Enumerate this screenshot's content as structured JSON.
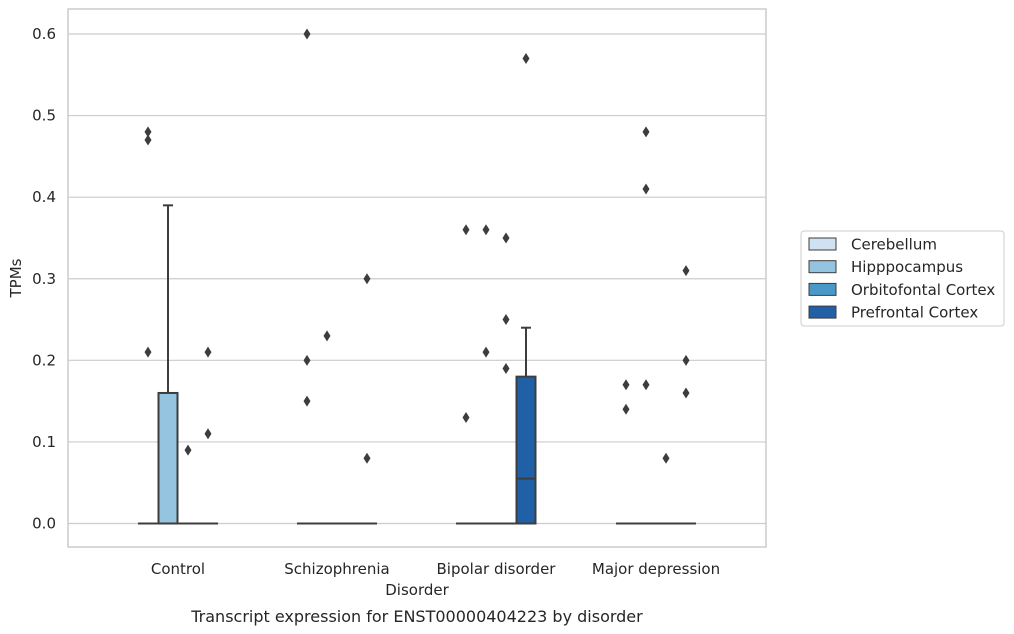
{
  "caption": "Transcript expression for ENST00000404223 by disorder",
  "chart_data": {
    "type": "box",
    "xlabel": "Disorder",
    "ylabel": "TPMs",
    "ylim": [
      -0.03,
      0.63
    ],
    "yticks": [
      0.0,
      0.1,
      0.2,
      0.3,
      0.4,
      0.5,
      0.6
    ],
    "ytick_labels": [
      "0.0",
      "0.1",
      "0.2",
      "0.3",
      "0.4",
      "0.5",
      "0.6"
    ],
    "grid": "horizontal",
    "legend_position": "right",
    "categories": [
      "Control",
      "Schizophrenia",
      "Bipolar disorder",
      "Major depression"
    ],
    "series": [
      {
        "name": "Cerebellum",
        "color": "#d0e1f2",
        "boxes": [
          {
            "min": 0,
            "q1": 0,
            "median": 0,
            "q3": 0,
            "max": 0,
            "outliers": [
              0.21,
              0.47,
              0.48
            ]
          },
          {
            "min": 0,
            "q1": 0,
            "median": 0,
            "q3": 0,
            "max": 0,
            "outliers": [
              0.15,
              0.2,
              0.6
            ]
          },
          {
            "min": 0,
            "q1": 0,
            "median": 0,
            "q3": 0,
            "max": 0,
            "outliers": [
              0.13,
              0.36
            ]
          },
          {
            "min": 0,
            "q1": 0,
            "median": 0,
            "q3": 0,
            "max": 0,
            "outliers": [
              0.14,
              0.17
            ]
          }
        ]
      },
      {
        "name": "Hipppocampus",
        "color": "#94c4df",
        "boxes": [
          {
            "min": 0,
            "q1": 0,
            "median": 0,
            "q3": 0.16,
            "max": 0.39,
            "outliers": []
          },
          {
            "min": 0,
            "q1": 0,
            "median": 0,
            "q3": 0,
            "max": 0,
            "outliers": [
              0.23
            ]
          },
          {
            "min": 0,
            "q1": 0,
            "median": 0,
            "q3": 0,
            "max": 0,
            "outliers": [
              0.21,
              0.36
            ]
          },
          {
            "min": 0,
            "q1": 0,
            "median": 0,
            "q3": 0,
            "max": 0,
            "outliers": [
              0.17,
              0.41,
              0.48
            ]
          }
        ]
      },
      {
        "name": "Orbitofontal Cortex",
        "color": "#4a98c9",
        "boxes": [
          {
            "min": 0,
            "q1": 0,
            "median": 0,
            "q3": 0,
            "max": 0,
            "outliers": [
              0.09
            ]
          },
          {
            "min": 0,
            "q1": 0,
            "median": 0,
            "q3": 0,
            "max": 0,
            "outliers": []
          },
          {
            "min": 0,
            "q1": 0,
            "median": 0,
            "q3": 0,
            "max": 0,
            "outliers": [
              0.19,
              0.25,
              0.35
            ]
          },
          {
            "min": 0,
            "q1": 0,
            "median": 0,
            "q3": 0,
            "max": 0,
            "outliers": [
              0.08
            ]
          }
        ]
      },
      {
        "name": "Prefrontal Cortex",
        "color": "#2060a7",
        "boxes": [
          {
            "min": 0,
            "q1": 0,
            "median": 0,
            "q3": 0,
            "max": 0,
            "outliers": [
              0.11,
              0.21
            ]
          },
          {
            "min": 0,
            "q1": 0,
            "median": 0,
            "q3": 0,
            "max": 0,
            "outliers": [
              0.08,
              0.3
            ]
          },
          {
            "min": 0,
            "q1": 0,
            "median": 0.055,
            "q3": 0.18,
            "max": 0.24,
            "outliers": [
              0.57
            ]
          },
          {
            "min": 0,
            "q1": 0,
            "median": 0,
            "q3": 0,
            "max": 0,
            "outliers": [
              0.16,
              0.2,
              0.31
            ]
          }
        ]
      }
    ]
  },
  "colors": {
    "line": "#3d3d3d",
    "grid": "#cccccc",
    "axes_edge": "#cccccc"
  }
}
